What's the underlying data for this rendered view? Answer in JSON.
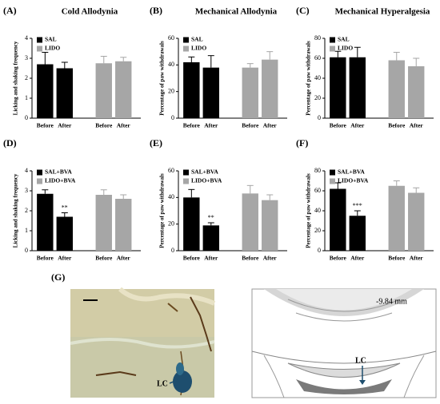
{
  "chart_data": [
    {
      "type": "bar",
      "panel_label": "(A)",
      "title": "Cold Allodynia",
      "y_label": "Licking and shaking frequency",
      "categories": [
        "Before",
        "After",
        "Before",
        "After"
      ],
      "ylim": [
        0,
        4
      ],
      "yticks": [
        0,
        1,
        2,
        3,
        4
      ],
      "series": [
        {
          "name": "SAL",
          "color": "#000000",
          "values": [
            2.7,
            2.5,
            null,
            null
          ],
          "errors": [
            0.6,
            0.3,
            null,
            null
          ]
        },
        {
          "name": "LIDO",
          "color": "#a6a6a6",
          "values": [
            null,
            null,
            2.75,
            2.85
          ],
          "errors": [
            null,
            null,
            0.35,
            0.2
          ]
        }
      ]
    },
    {
      "type": "bar",
      "panel_label": "(B)",
      "title": "Mechanical Allodynia",
      "y_label": "Percentage of paw withdrawals",
      "categories": [
        "Before",
        "After",
        "Before",
        "After"
      ],
      "ylim": [
        0,
        60
      ],
      "yticks": [
        0,
        20,
        40,
        60
      ],
      "series": [
        {
          "name": "SAL",
          "color": "#000000",
          "values": [
            42,
            38,
            null,
            null
          ],
          "errors": [
            4,
            9,
            null,
            null
          ]
        },
        {
          "name": "LIDO",
          "color": "#a6a6a6",
          "values": [
            null,
            null,
            38,
            44
          ],
          "errors": [
            null,
            null,
            3,
            6
          ]
        }
      ]
    },
    {
      "type": "bar",
      "panel_label": "(C)",
      "title": "Mechanical Hyperalgesia",
      "y_label": "Percentage of paw withdrawals",
      "categories": [
        "Before",
        "After",
        "Before",
        "After"
      ],
      "ylim": [
        0,
        80
      ],
      "yticks": [
        0,
        20,
        40,
        60,
        80
      ],
      "series": [
        {
          "name": "SAL",
          "color": "#000000",
          "values": [
            61,
            61,
            null,
            null
          ],
          "errors": [
            6,
            10,
            null,
            null
          ]
        },
        {
          "name": "LIDO",
          "color": "#a6a6a6",
          "values": [
            null,
            null,
            58,
            52
          ],
          "errors": [
            null,
            null,
            8,
            8
          ]
        }
      ]
    },
    {
      "type": "bar",
      "panel_label": "(D)",
      "y_label": "Licking and shaking frequency",
      "categories": [
        "Before",
        "After",
        "Before",
        "After"
      ],
      "ylim": [
        0,
        4
      ],
      "yticks": [
        0,
        1,
        2,
        3,
        4
      ],
      "annotations": [
        null,
        "**",
        null,
        null
      ],
      "series": [
        {
          "name": "SAL+BVA",
          "color": "#000000",
          "values": [
            2.85,
            1.7,
            null,
            null
          ],
          "errors": [
            0.2,
            0.2,
            null,
            null
          ]
        },
        {
          "name": "LIDO+BVA",
          "color": "#a6a6a6",
          "values": [
            null,
            null,
            2.8,
            2.6
          ],
          "errors": [
            null,
            null,
            0.25,
            0.2
          ]
        }
      ]
    },
    {
      "type": "bar",
      "panel_label": "(E)",
      "y_label": "Percentage of paw withdrawals",
      "categories": [
        "Before",
        "After",
        "Before",
        "After"
      ],
      "ylim": [
        0,
        60
      ],
      "yticks": [
        0,
        20,
        40,
        60
      ],
      "annotations": [
        null,
        "**",
        null,
        null
      ],
      "series": [
        {
          "name": "SAL+BVA",
          "color": "#000000",
          "values": [
            40,
            19,
            null,
            null
          ],
          "errors": [
            6,
            2,
            null,
            null
          ]
        },
        {
          "name": "LIDO+BVA",
          "color": "#a6a6a6",
          "values": [
            null,
            null,
            43,
            38
          ],
          "errors": [
            null,
            null,
            6,
            4
          ]
        }
      ]
    },
    {
      "type": "bar",
      "panel_label": "(F)",
      "y_label": "Percentage of paw withdrawals",
      "categories": [
        "Before",
        "After",
        "Before",
        "After"
      ],
      "ylim": [
        0,
        80
      ],
      "yticks": [
        0,
        20,
        40,
        60,
        80
      ],
      "annotations": [
        null,
        "***",
        null,
        null
      ],
      "series": [
        {
          "name": "SAL+BVA",
          "color": "#000000",
          "values": [
            62,
            35,
            null,
            null
          ],
          "errors": [
            6,
            5,
            null,
            null
          ]
        },
        {
          "name": "LIDO+BVA",
          "color": "#a6a6a6",
          "values": [
            null,
            null,
            65,
            58
          ],
          "errors": [
            null,
            null,
            5,
            5
          ]
        }
      ]
    }
  ],
  "panel_g": {
    "label": "(G)",
    "photo_marker": "LC",
    "atlas_coordinate": "-9.84 mm",
    "atlas_marker": "LC"
  }
}
